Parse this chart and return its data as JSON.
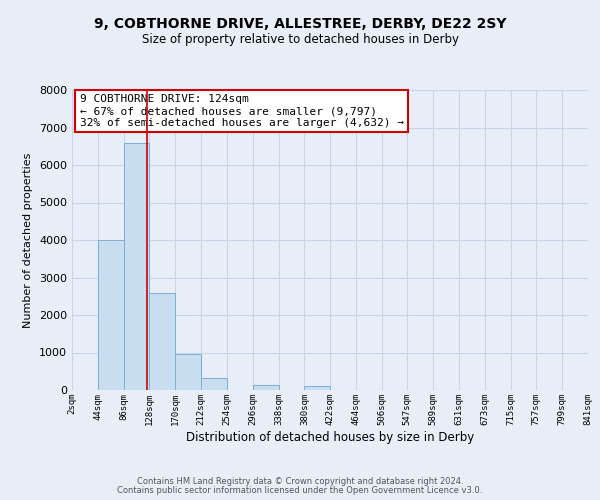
{
  "title": "9, COBTHORNE DRIVE, ALLESTREE, DERBY, DE22 2SY",
  "subtitle": "Size of property relative to detached houses in Derby",
  "xlabel": "Distribution of detached houses by size in Derby",
  "ylabel": "Number of detached properties",
  "bin_edges": [
    2,
    44,
    86,
    128,
    170,
    212,
    254,
    296,
    338,
    380,
    422,
    464,
    506,
    547,
    589,
    631,
    673,
    715,
    757,
    799,
    841
  ],
  "bar_heights": [
    0,
    4000,
    6600,
    2600,
    950,
    325,
    0,
    125,
    0,
    100,
    0,
    0,
    0,
    0,
    0,
    0,
    0,
    0,
    0,
    0
  ],
  "bar_color": "#c9ddf0",
  "bar_edge_color": "#7bafd4",
  "grid_color": "#c8d4e8",
  "background_color": "#e8eef8",
  "property_line_x": 124,
  "property_line_color": "#cc0000",
  "annotation_title": "9 COBTHORNE DRIVE: 124sqm",
  "annotation_line1": "← 67% of detached houses are smaller (9,797)",
  "annotation_line2": "32% of semi-detached houses are larger (4,632) →",
  "annotation_box_color": "#cc0000",
  "annotation_bg": "#ffffff",
  "ylim": [
    0,
    8000
  ],
  "yticks": [
    0,
    1000,
    2000,
    3000,
    4000,
    5000,
    6000,
    7000,
    8000
  ],
  "xtick_labels": [
    "2sqm",
    "44sqm",
    "86sqm",
    "128sqm",
    "170sqm",
    "212sqm",
    "254sqm",
    "296sqm",
    "338sqm",
    "380sqm",
    "422sqm",
    "464sqm",
    "506sqm",
    "547sqm",
    "589sqm",
    "631sqm",
    "673sqm",
    "715sqm",
    "757sqm",
    "799sqm",
    "841sqm"
  ],
  "footer1": "Contains HM Land Registry data © Crown copyright and database right 2024.",
  "footer2": "Contains public sector information licensed under the Open Government Licence v3.0."
}
